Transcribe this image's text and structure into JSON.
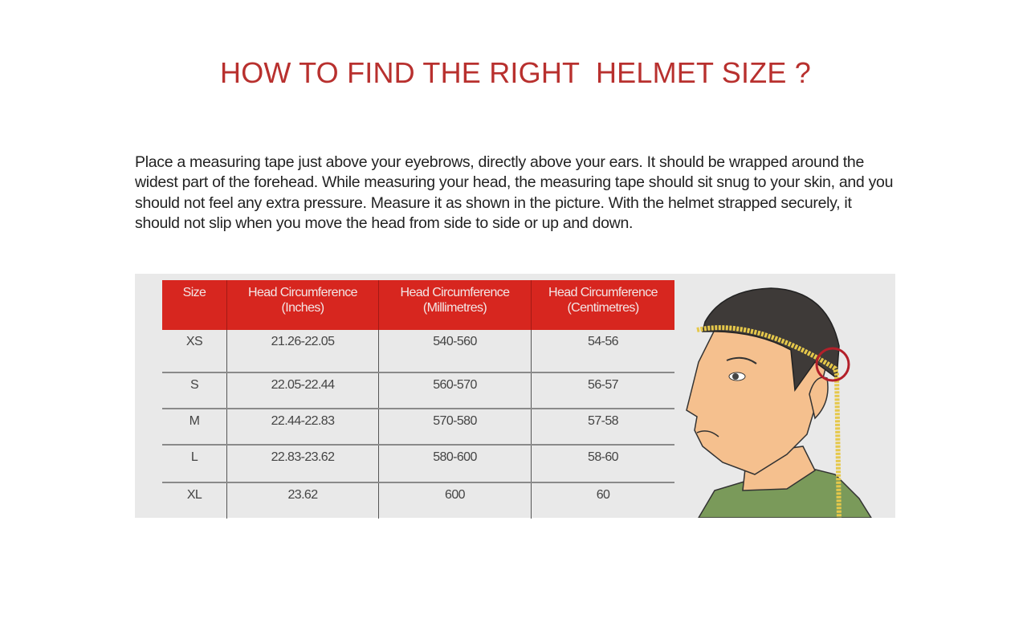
{
  "title": "HOW TO FIND THE RIGHT  HELMET SIZE ?",
  "intro": "Place a measuring tape just above your eyebrows, directly above your ears. It should be wrapped around the widest part of the forehead. While measuring your head, the measuring tape should sit snug to your skin, and you should not feel any extra pressure. Measure it as shown in the picture. With the helmet strapped securely, it should not slip when you move the head from side to side or up and down.",
  "table": {
    "headers": [
      {
        "line1": "Size",
        "line2": ""
      },
      {
        "line1": "Head Circumference",
        "line2": "(Inches)"
      },
      {
        "line1": "Head Circumference",
        "line2": "(Millimetres)"
      },
      {
        "line1": "Head Circumference",
        "line2": "(Centimetres)"
      }
    ],
    "rows": [
      [
        "XS",
        "21.26-22.05",
        "540-560",
        "54-56"
      ],
      [
        "S",
        "22.05-22.44",
        "560-570",
        "56-57"
      ],
      [
        "M",
        "22.44-22.83",
        "570-580",
        "57-58"
      ],
      [
        "L",
        "22.83-23.62",
        "580-600",
        "58-60"
      ],
      [
        "XL",
        "23.62",
        "600",
        "60"
      ]
    ]
  },
  "colors": {
    "title": "#b8302e",
    "header_bg": "#d7261f",
    "panel_bg": "#e9e9e9"
  }
}
